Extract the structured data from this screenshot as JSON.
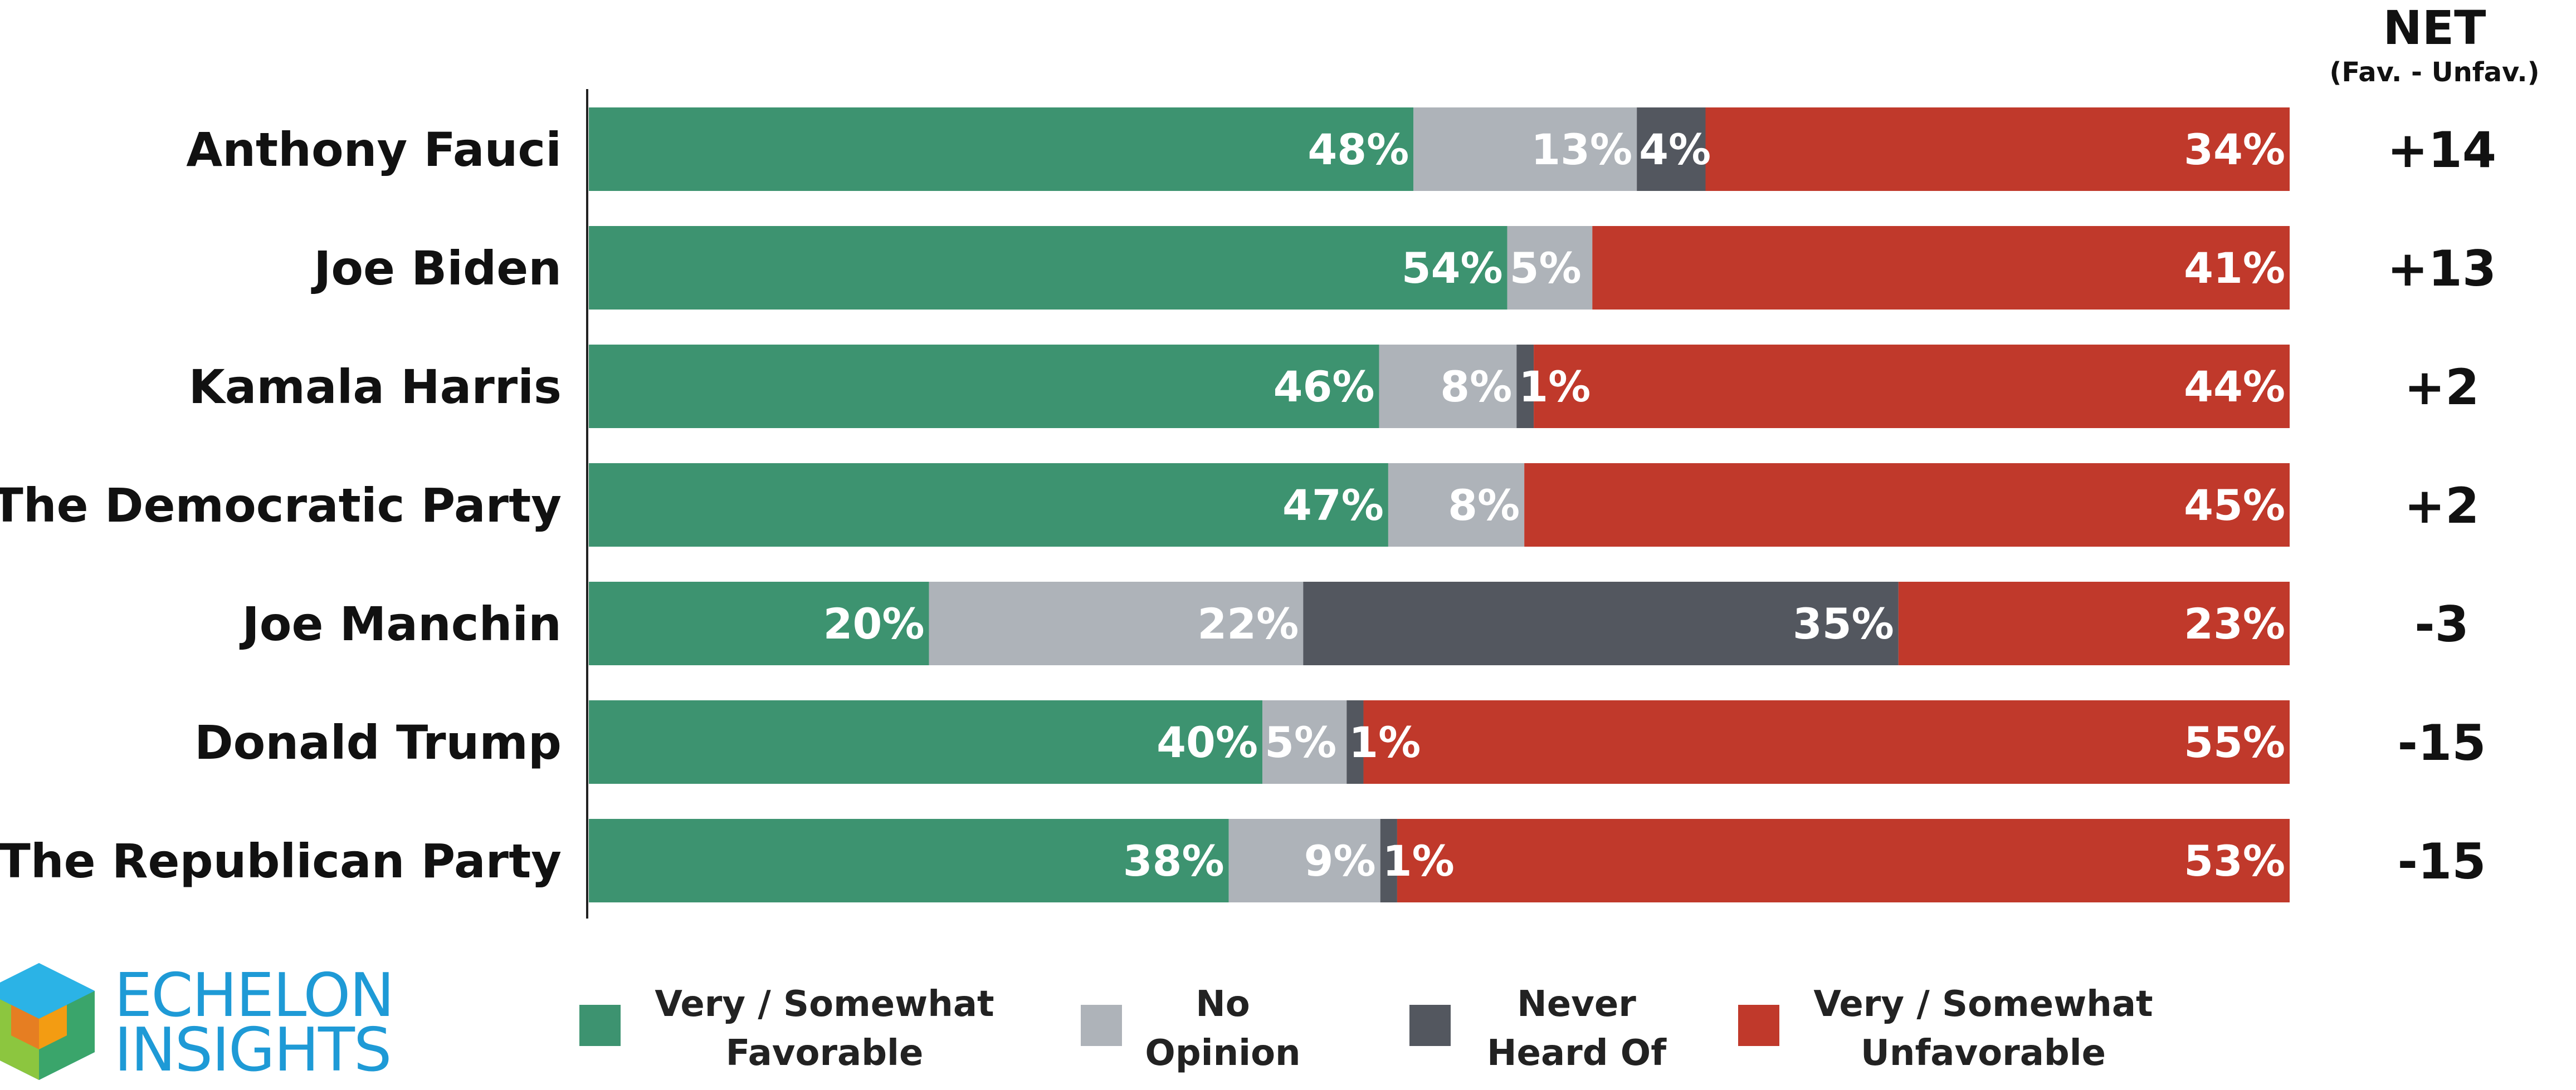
{
  "net_header": {
    "title": "NET",
    "subtitle": "(Fav. - Unfav.)"
  },
  "logo": {
    "line1": "ECHELON",
    "line2": "INSIGHTS"
  },
  "chart_data": {
    "type": "bar",
    "orientation": "horizontal",
    "stacked": true,
    "xlim": [
      0,
      100
    ],
    "categories": [
      "Anthony Fauci",
      "Joe Biden",
      "Kamala Harris",
      "The Democratic Party",
      "Joe Manchin",
      "Donald Trump",
      "The Republican Party"
    ],
    "series": [
      {
        "name": "Very / Somewhat Favorable",
        "values": [
          48,
          54,
          46,
          47,
          20,
          40,
          38
        ],
        "color": "#3d9370"
      },
      {
        "name": "No Opinion",
        "values": [
          13,
          5,
          8,
          8,
          22,
          5,
          9
        ],
        "color": "#aeb3b9"
      },
      {
        "name": "Never Heard Of",
        "values": [
          4,
          0,
          1,
          0,
          35,
          1,
          1
        ],
        "color": "#53575f"
      },
      {
        "name": "Very / Somewhat Unfavorable",
        "values": [
          34,
          41,
          44,
          45,
          23,
          55,
          53
        ],
        "color": "#c0392b"
      }
    ],
    "net": [
      "+14",
      "+13",
      "+2",
      "+2",
      "-3",
      "-15",
      "-15"
    ],
    "legend": [
      {
        "label": "Very / Somewhat\nFavorable",
        "color": "#3d9370"
      },
      {
        "label": "No\nOpinion",
        "color": "#aeb3b9"
      },
      {
        "label": "Never\nHeard Of",
        "color": "#53575f"
      },
      {
        "label": "Very / Somewhat\nUnfavorable",
        "color": "#c0392b"
      }
    ],
    "legend_position": "bottom"
  }
}
